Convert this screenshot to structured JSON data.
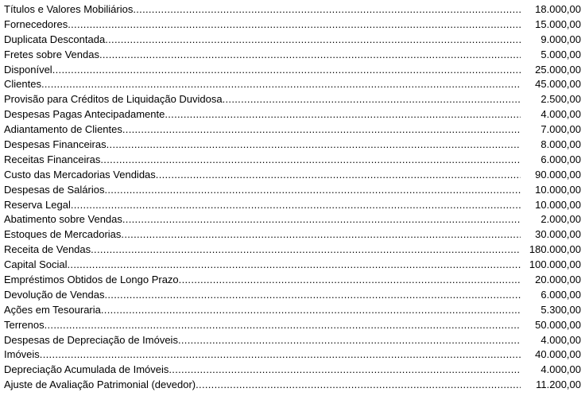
{
  "accounts": [
    {
      "label": "Títulos e Valores Mobiliários",
      "value": "18.000,00"
    },
    {
      "label": "Fornecedores",
      "value": "15.000,00"
    },
    {
      "label": "Duplicata Descontada",
      "value": "9.000,00"
    },
    {
      "label": "Fretes sobre Vendas ",
      "value": "5.000,00"
    },
    {
      "label": "Disponível",
      "value": "25.000,00"
    },
    {
      "label": "Clientes",
      "value": "45.000,00"
    },
    {
      "label": "Provisão para Créditos de Liquidação Duvidosa ",
      "value": "2.500,00"
    },
    {
      "label": "Despesas Pagas Antecipadamente",
      "value": "4.000,00"
    },
    {
      "label": "Adiantamento de Clientes",
      "value": "7.000,00"
    },
    {
      "label": "Despesas Financeiras ",
      "value": "8.000,00"
    },
    {
      "label": "Receitas Financeiras ",
      "value": "6.000,00"
    },
    {
      "label": "Custo das Mercadorias Vendidas",
      "value": "90.000,00"
    },
    {
      "label": "Despesas de Salários",
      "value": "10.000,00"
    },
    {
      "label": "Reserva Legal",
      "value": "10.000,00"
    },
    {
      "label": "Abatimento sobre Vendas",
      "value": "2.000,00"
    },
    {
      "label": "Estoques de Mercadorias ",
      "value": "30.000,00"
    },
    {
      "label": "Receita de Vendas ",
      "value": "180.000,00"
    },
    {
      "label": "Capital Social",
      "value": "100.000,00"
    },
    {
      "label": "Empréstimos Obtidos de Longo Prazo ",
      "value": "20.000,00"
    },
    {
      "label": "Devolução de Vendas",
      "value": "6.000,00"
    },
    {
      "label": "Ações em Tesouraria",
      "value": "5.300,00"
    },
    {
      "label": "Terrenos ",
      "value": "50.000,00"
    },
    {
      "label": "Despesas de Depreciação de Imóveis ",
      "value": "4.000,00"
    },
    {
      "label": "Imóveis ",
      "value": "40.000,00"
    },
    {
      "label": "Depreciação Acumulada de Imóveis ",
      "value": "4.000,00"
    },
    {
      "label": "Ajuste de Avaliação Patrimonial (devedor) ",
      "value": "11.200,00"
    }
  ]
}
